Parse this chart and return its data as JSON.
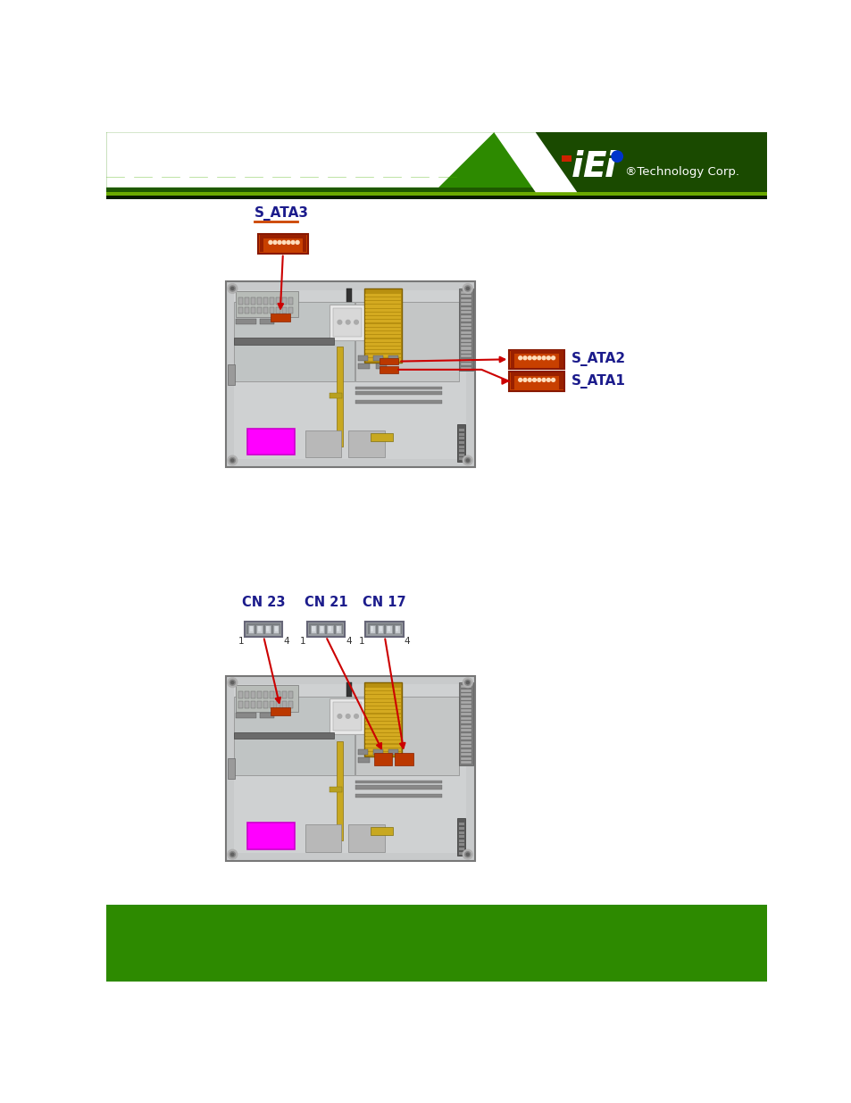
{
  "bg_color": "#ffffff",
  "board_color": "#c8cac8",
  "board_border": "#888888",
  "board_inner_color": "#d4d6d4",
  "connector_orange": "#c84000",
  "connector_label_color": "#1c1c8c",
  "arrow_color": "#cc0000",
  "magenta_color": "#ff00ff",
  "yellow_color": "#c8a820",
  "yellow_light": "#e8c840",
  "gray_comp": "#909090",
  "dark_gray": "#555555",
  "green_header": "#3a8c00",
  "green_dark": "#1a4400",
  "white": "#ffffff",
  "figure1": {
    "label_s_ata3": "S_ATA3",
    "label_s_ata2": "S_ATA2",
    "label_s_ata1": "S_ATA1"
  },
  "figure2": {
    "label_cn23": "CN 23",
    "label_cn21": "CN 21",
    "label_cn17": "CN 17"
  },
  "logo_text": "®Technology Corp.",
  "logo_iei": "iEi"
}
